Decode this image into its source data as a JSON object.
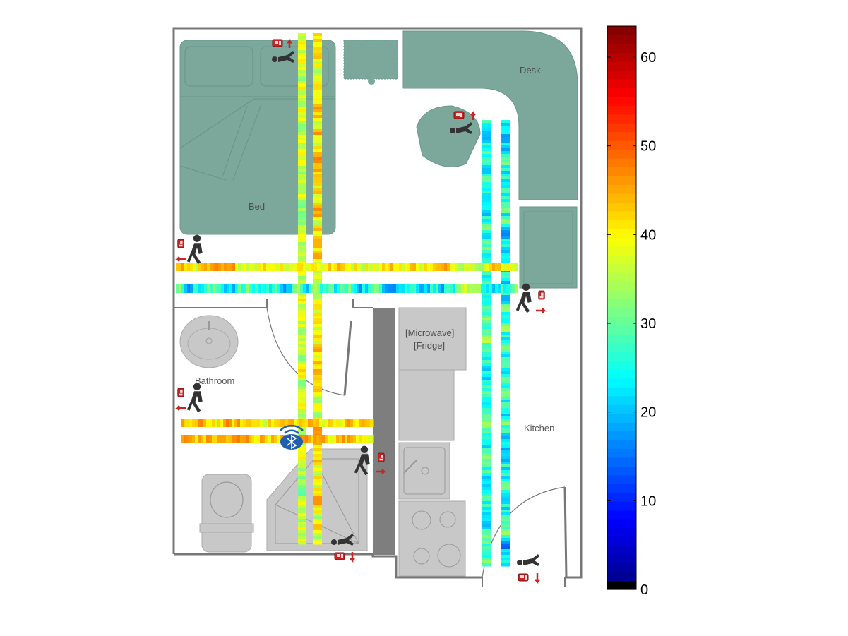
{
  "floorplan": {
    "room_labels": {
      "bed": "Bed",
      "desk": "Desk",
      "bathroom": "Bathroom",
      "kitchen": "Kitchen",
      "microwave": "[Microwave]",
      "fridge": "[Fridge]"
    },
    "colors": {
      "furniture_green": "#7ba89b",
      "fixture_gray": "#c8c8c8",
      "wall": "#777777",
      "phone_red": "#cc2222",
      "bluetooth_blue": "#1f5fae"
    },
    "walkers": [
      {
        "name": "walker-bed-top",
        "pose": "lying",
        "direction": "up"
      },
      {
        "name": "walker-desk-chair",
        "pose": "lying",
        "direction": "up"
      },
      {
        "name": "walker-left-upper",
        "pose": "walking",
        "direction": "left"
      },
      {
        "name": "walker-right-middle",
        "pose": "walking",
        "direction": "right"
      },
      {
        "name": "walker-bathroom",
        "pose": "walking",
        "direction": "left"
      },
      {
        "name": "walker-shower",
        "pose": "walking",
        "direction": "right"
      },
      {
        "name": "walker-bottom-middle",
        "pose": "lying",
        "direction": "down"
      },
      {
        "name": "walker-bottom-right",
        "pose": "lying",
        "direction": "down"
      }
    ],
    "icons": [
      "person-walking-icon",
      "person-lying-icon",
      "phone-icon",
      "arrow-icon",
      "bluetooth-beacon-icon"
    ]
  },
  "chart_data": {
    "type": "heatmap",
    "colormap": "jet",
    "clim": [
      0,
      63.5
    ],
    "colorbar_ticks": [
      0,
      10,
      20,
      30,
      40,
      50,
      60
    ],
    "tracks": [
      {
        "name": "vertical-bed-left",
        "orientation": "vertical",
        "mean": 36,
        "spread": 6
      },
      {
        "name": "vertical-bed-right",
        "orientation": "vertical",
        "mean": 40,
        "spread": 7
      },
      {
        "name": "vertical-kitchen-left",
        "orientation": "vertical",
        "mean": 27,
        "spread": 7
      },
      {
        "name": "vertical-kitchen-right",
        "orientation": "vertical",
        "mean": 24,
        "spread": 9
      },
      {
        "name": "horizontal-upper",
        "orientation": "horizontal",
        "mean": 41,
        "spread": 6
      },
      {
        "name": "horizontal-lower",
        "orientation": "horizontal",
        "mean": 26,
        "spread": 9
      },
      {
        "name": "horizontal-bath-upper",
        "orientation": "horizontal",
        "mean": 42,
        "spread": 6
      },
      {
        "name": "horizontal-bath-lower",
        "orientation": "horizontal",
        "mean": 44,
        "spread": 6
      }
    ]
  }
}
